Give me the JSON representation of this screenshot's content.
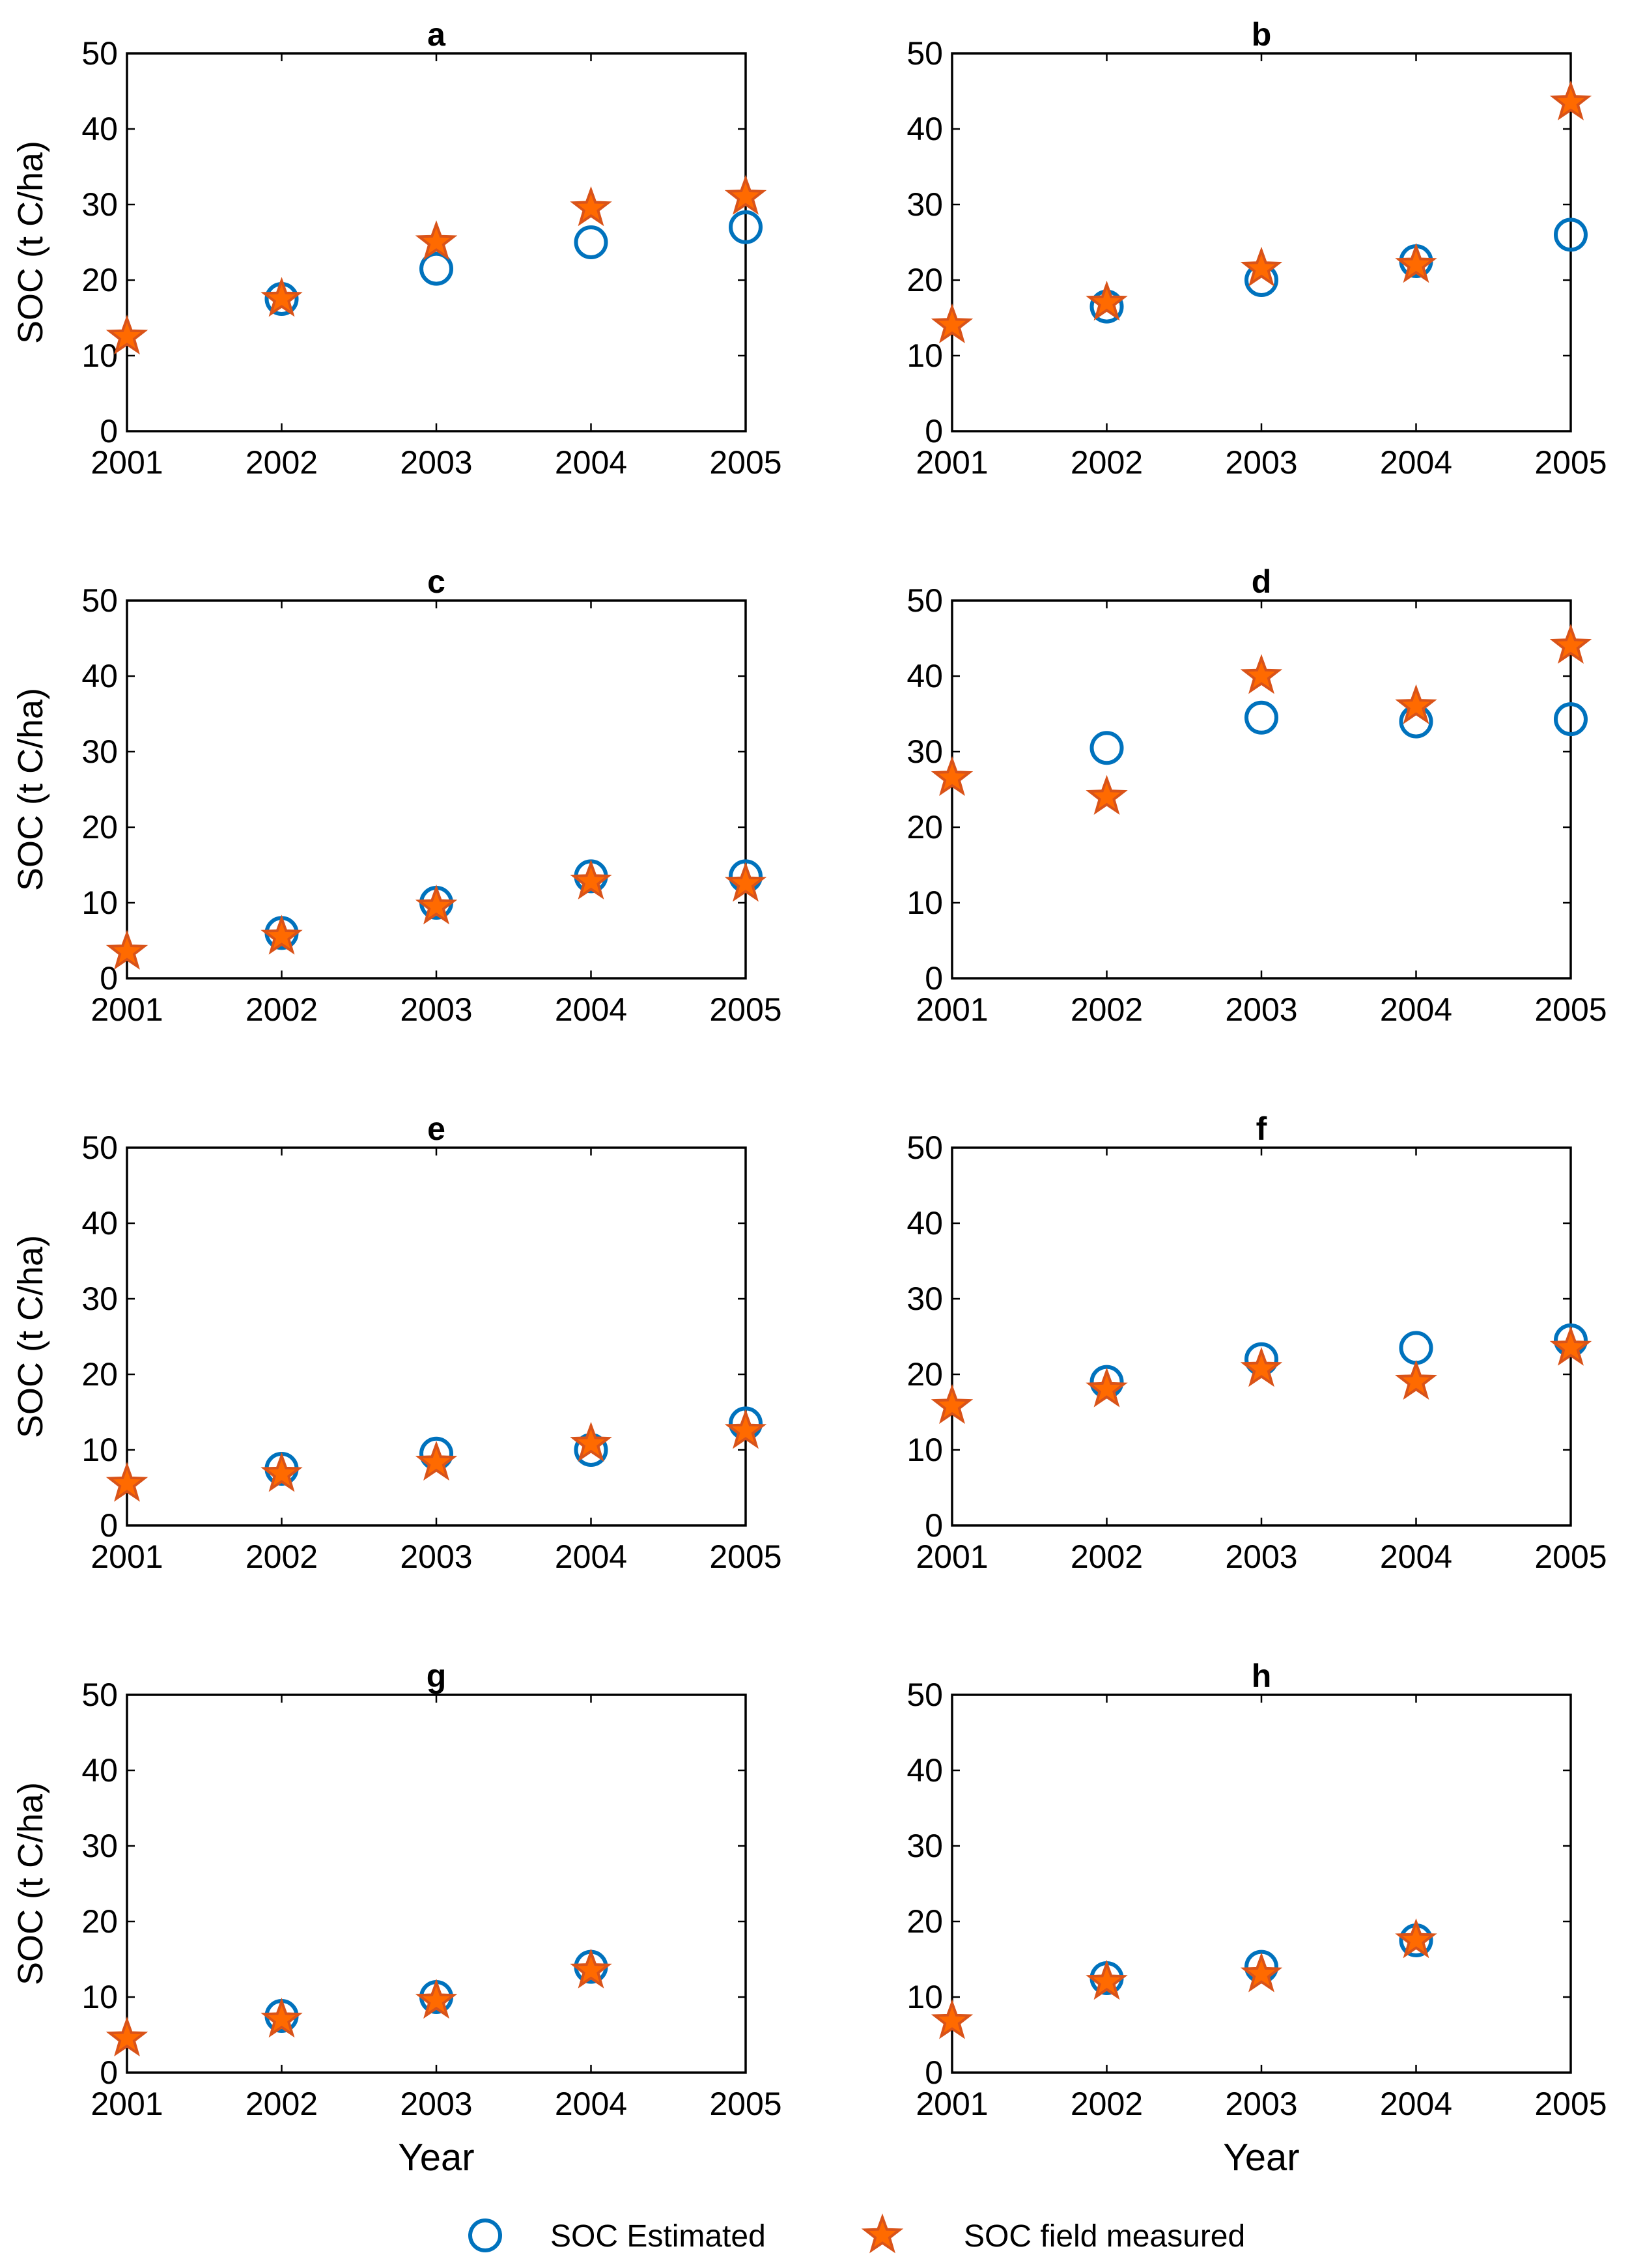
{
  "colors": {
    "estimated": "#0072BD",
    "measured_fill": "#FF6A00",
    "measured_edge": "#D95319",
    "axis": "#000000"
  },
  "legend": {
    "estimated_label": "SOC Estimated",
    "measured_label": "SOC field measured",
    "estimated_icon": "circle-marker-icon",
    "measured_icon": "star-marker-icon"
  },
  "chart_data": [
    {
      "panel": "a",
      "type": "scatter",
      "title": "a",
      "ylabel": "SOC (t C/ha)",
      "xlabel": "",
      "x_ticks": [
        "2001",
        "2002",
        "2003",
        "2004",
        "2005"
      ],
      "y_ticks": [
        "0",
        "10",
        "20",
        "30",
        "40",
        "50"
      ],
      "xlim": [
        2001,
        2005
      ],
      "ylim": [
        0,
        50
      ],
      "series": [
        {
          "name": "SOC Estimated",
          "marker": "circle",
          "x": [
            2002,
            2003,
            2004,
            2005
          ],
          "y": [
            17.5,
            21.5,
            25,
            27
          ]
        },
        {
          "name": "SOC field measured",
          "marker": "star",
          "x": [
            2001,
            2002,
            2003,
            2004,
            2005
          ],
          "y": [
            12.5,
            17.5,
            25,
            29.5,
            31
          ]
        }
      ]
    },
    {
      "panel": "b",
      "type": "scatter",
      "title": "b",
      "ylabel": "",
      "xlabel": "",
      "x_ticks": [
        "2001",
        "2002",
        "2003",
        "2004",
        "2005"
      ],
      "y_ticks": [
        "0",
        "10",
        "20",
        "30",
        "40",
        "50"
      ],
      "xlim": [
        2001,
        2005
      ],
      "ylim": [
        0,
        50
      ],
      "series": [
        {
          "name": "SOC Estimated",
          "marker": "circle",
          "x": [
            2002,
            2003,
            2004,
            2005
          ],
          "y": [
            16.5,
            20,
            22.5,
            26
          ]
        },
        {
          "name": "SOC field measured",
          "marker": "star",
          "x": [
            2001,
            2002,
            2003,
            2004,
            2005
          ],
          "y": [
            14,
            17,
            21.5,
            22,
            43.5
          ]
        }
      ]
    },
    {
      "panel": "c",
      "type": "scatter",
      "title": "c",
      "ylabel": "SOC (t C/ha)",
      "xlabel": "",
      "x_ticks": [
        "2001",
        "2002",
        "2003",
        "2004",
        "2005"
      ],
      "y_ticks": [
        "0",
        "10",
        "20",
        "30",
        "40",
        "50"
      ],
      "xlim": [
        2001,
        2005
      ],
      "ylim": [
        0,
        50
      ],
      "series": [
        {
          "name": "SOC Estimated",
          "marker": "circle",
          "x": [
            2002,
            2003,
            2004,
            2005
          ],
          "y": [
            6,
            10,
            13.5,
            13.5
          ]
        },
        {
          "name": "SOC field measured",
          "marker": "star",
          "x": [
            2001,
            2002,
            2003,
            2004,
            2005
          ],
          "y": [
            3.5,
            5.5,
            9.5,
            12.8,
            12.5
          ]
        }
      ]
    },
    {
      "panel": "d",
      "type": "scatter",
      "title": "d",
      "ylabel": "",
      "xlabel": "",
      "x_ticks": [
        "2001",
        "2002",
        "2003",
        "2004",
        "2005"
      ],
      "y_ticks": [
        "0",
        "10",
        "20",
        "30",
        "40",
        "50"
      ],
      "xlim": [
        2001,
        2005
      ],
      "ylim": [
        0,
        50
      ],
      "series": [
        {
          "name": "SOC Estimated",
          "marker": "circle",
          "x": [
            2002,
            2003,
            2004,
            2005
          ],
          "y": [
            30.5,
            34.5,
            34,
            34.3
          ]
        },
        {
          "name": "SOC field measured",
          "marker": "star",
          "x": [
            2001,
            2002,
            2003,
            2004,
            2005
          ],
          "y": [
            26.5,
            24,
            40,
            36,
            44
          ]
        }
      ]
    },
    {
      "panel": "e",
      "type": "scatter",
      "title": "e",
      "ylabel": "SOC (t C/ha)",
      "xlabel": "",
      "x_ticks": [
        "2001",
        "2002",
        "2003",
        "2004",
        "2005"
      ],
      "y_ticks": [
        "0",
        "10",
        "20",
        "30",
        "40",
        "50"
      ],
      "xlim": [
        2001,
        2005
      ],
      "ylim": [
        0,
        50
      ],
      "series": [
        {
          "name": "SOC Estimated",
          "marker": "circle",
          "x": [
            2002,
            2003,
            2004,
            2005
          ],
          "y": [
            7.5,
            9.5,
            10,
            13.5
          ]
        },
        {
          "name": "SOC field measured",
          "marker": "star",
          "x": [
            2001,
            2002,
            2003,
            2004,
            2005
          ],
          "y": [
            5.5,
            6.8,
            8.3,
            10.8,
            12.5
          ]
        }
      ]
    },
    {
      "panel": "f",
      "type": "scatter",
      "title": "f",
      "ylabel": "",
      "xlabel": "",
      "x_ticks": [
        "2001",
        "2002",
        "2003",
        "2004",
        "2005"
      ],
      "y_ticks": [
        "0",
        "10",
        "20",
        "30",
        "40",
        "50"
      ],
      "xlim": [
        2001,
        2005
      ],
      "ylim": [
        0,
        50
      ],
      "series": [
        {
          "name": "SOC Estimated",
          "marker": "circle",
          "x": [
            2002,
            2003,
            2004,
            2005
          ],
          "y": [
            19,
            22,
            23.5,
            24.5
          ]
        },
        {
          "name": "SOC field measured",
          "marker": "star",
          "x": [
            2001,
            2002,
            2003,
            2004,
            2005
          ],
          "y": [
            15.8,
            18,
            20.7,
            19,
            23.5
          ]
        }
      ]
    },
    {
      "panel": "g",
      "type": "scatter",
      "title": "g",
      "ylabel": "SOC (t C/ha)",
      "xlabel": "Year",
      "x_ticks": [
        "2001",
        "2002",
        "2003",
        "2004",
        "2005"
      ],
      "y_ticks": [
        "0",
        "10",
        "20",
        "30",
        "40",
        "50"
      ],
      "xlim": [
        2001,
        2005
      ],
      "ylim": [
        0,
        50
      ],
      "series": [
        {
          "name": "SOC Estimated",
          "marker": "circle",
          "x": [
            2002,
            2003,
            2004
          ],
          "y": [
            7.5,
            10,
            14
          ]
        },
        {
          "name": "SOC field measured",
          "marker": "star",
          "x": [
            2001,
            2002,
            2003,
            2004
          ],
          "y": [
            4.5,
            7,
            9.5,
            13.5
          ]
        }
      ]
    },
    {
      "panel": "h",
      "type": "scatter",
      "title": "h",
      "ylabel": "",
      "xlabel": "Year",
      "x_ticks": [
        "2001",
        "2002",
        "2003",
        "2004",
        "2005"
      ],
      "y_ticks": [
        "0",
        "10",
        "20",
        "30",
        "40",
        "50"
      ],
      "xlim": [
        2001,
        2005
      ],
      "ylim": [
        0,
        50
      ],
      "series": [
        {
          "name": "SOC Estimated",
          "marker": "circle",
          "x": [
            2002,
            2003,
            2004
          ],
          "y": [
            12.5,
            14,
            17.5
          ]
        },
        {
          "name": "SOC field measured",
          "marker": "star",
          "x": [
            2001,
            2002,
            2003,
            2004
          ],
          "y": [
            6.8,
            12,
            13,
            17.5
          ]
        }
      ]
    }
  ]
}
